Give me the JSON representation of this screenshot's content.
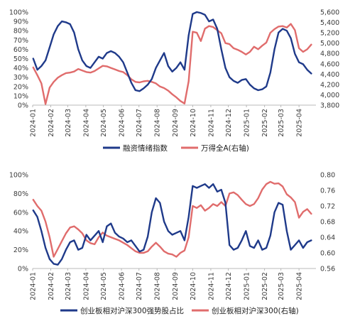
{
  "colors": {
    "navy": "#1f3a8a",
    "red": "#e06c6c",
    "axis": "#b8b8b8"
  },
  "chart_data": [
    {
      "type": "line",
      "title": "",
      "x_dates": [
        "2024-01-02",
        "2024-01-09",
        "2024-01-16",
        "2024-01-23",
        "2024-01-30",
        "2024-02-06",
        "2024-02-13",
        "2024-02-20",
        "2024-02-27",
        "2024-03-05",
        "2024-03-12",
        "2024-03-19",
        "2024-03-26",
        "2024-04-02",
        "2024-04-09",
        "2024-04-16",
        "2024-04-23",
        "2024-04-30",
        "2024-05-07",
        "2024-05-14",
        "2024-05-21",
        "2024-05-28",
        "2024-06-04",
        "2024-06-11",
        "2024-06-18",
        "2024-06-25",
        "2024-07-02",
        "2024-07-09",
        "2024-07-16",
        "2024-07-23",
        "2024-07-30",
        "2024-08-06",
        "2024-08-13",
        "2024-08-20",
        "2024-08-27",
        "2024-09-03",
        "2024-09-10",
        "2024-09-17",
        "2024-09-24",
        "2024-10-01",
        "2024-10-08",
        "2024-10-15",
        "2024-10-22",
        "2024-10-29",
        "2024-11-05",
        "2024-11-12",
        "2024-11-19",
        "2024-11-26",
        "2024-12-03",
        "2024-12-10",
        "2024-12-17",
        "2024-12-24",
        "2024-12-31",
        "2025-01-07",
        "2025-01-14",
        "2025-01-21",
        "2025-01-28",
        "2025-02-04",
        "2025-02-11",
        "2025-02-18",
        "2025-02-25",
        "2025-03-04",
        "2025-03-11",
        "2025-03-18",
        "2025-03-25",
        "2025-04-01",
        "2025-04-08",
        "2025-04-15",
        "2025-04-22"
      ],
      "x_tick_labels": [
        "2024-01",
        "2024-02",
        "2024-03",
        "2024-04",
        "2024-05",
        "2024-06",
        "2024-07",
        "2024-08",
        "2024-09",
        "2024-10",
        "2024-11",
        "2024-12",
        "2025-01",
        "2025-02",
        "2025-03",
        "2025-04"
      ],
      "y_left_ticks": [
        "0%",
        "10%",
        "20%",
        "30%",
        "40%",
        "50%",
        "60%",
        "70%",
        "80%",
        "90%",
        "100%"
      ],
      "y_left_lim": [
        0,
        100
      ],
      "y_right_ticks": [
        "3,800",
        "4,000",
        "4,200",
        "4,400",
        "4,600",
        "4,800",
        "5,000",
        "5,200",
        "5,400",
        "5,600"
      ],
      "y_right_lim": [
        3800,
        5600
      ],
      "legend": "bottom-center",
      "series": [
        {
          "name": "融资情绪指数",
          "axis": "left",
          "color": "#1f3a8a",
          "values": [
            50,
            38,
            42,
            48,
            62,
            76,
            85,
            90,
            89,
            87,
            78,
            60,
            48,
            42,
            40,
            46,
            52,
            50,
            56,
            58,
            56,
            52,
            46,
            35,
            24,
            16,
            15,
            18,
            22,
            28,
            40,
            48,
            56,
            42,
            36,
            40,
            46,
            38,
            75,
            98,
            100,
            99,
            97,
            90,
            92,
            82,
            60,
            40,
            30,
            26,
            24,
            27,
            28,
            22,
            18,
            16,
            17,
            20,
            35,
            60,
            78,
            82,
            80,
            72,
            55,
            46,
            44,
            38,
            34
          ]
        },
        {
          "name": "万得全A(右轴)",
          "axis": "right",
          "color": "#e06c6c",
          "values": [
            4530,
            4380,
            4220,
            3820,
            4140,
            4250,
            4330,
            4380,
            4420,
            4430,
            4450,
            4500,
            4470,
            4440,
            4430,
            4460,
            4510,
            4560,
            4550,
            4520,
            4490,
            4460,
            4440,
            4380,
            4300,
            4250,
            4240,
            4260,
            4270,
            4250,
            4220,
            4160,
            4130,
            4080,
            4010,
            3950,
            3880,
            3830,
            4260,
            5220,
            5200,
            5040,
            5280,
            5330,
            5310,
            5250,
            5190,
            5000,
            4980,
            4900,
            4870,
            4830,
            4780,
            4830,
            4930,
            4880,
            4950,
            5010,
            5200,
            5270,
            5320,
            5330,
            5300,
            5370,
            5250,
            4900,
            4830,
            4880,
            4970
          ]
        }
      ]
    },
    {
      "type": "line",
      "title": "",
      "x_dates": [
        "2024-01-02",
        "2024-01-09",
        "2024-01-16",
        "2024-01-23",
        "2024-01-30",
        "2024-02-06",
        "2024-02-13",
        "2024-02-20",
        "2024-02-27",
        "2024-03-05",
        "2024-03-12",
        "2024-03-19",
        "2024-03-26",
        "2024-04-02",
        "2024-04-09",
        "2024-04-16",
        "2024-04-23",
        "2024-04-30",
        "2024-05-07",
        "2024-05-14",
        "2024-05-21",
        "2024-05-28",
        "2024-06-04",
        "2024-06-11",
        "2024-06-18",
        "2024-06-25",
        "2024-07-02",
        "2024-07-09",
        "2024-07-16",
        "2024-07-23",
        "2024-07-30",
        "2024-08-06",
        "2024-08-13",
        "2024-08-20",
        "2024-08-27",
        "2024-09-03",
        "2024-09-10",
        "2024-09-17",
        "2024-09-24",
        "2024-10-01",
        "2024-10-08",
        "2024-10-15",
        "2024-10-22",
        "2024-10-29",
        "2024-11-05",
        "2024-11-12",
        "2024-11-19",
        "2024-11-26",
        "2024-12-03",
        "2024-12-10",
        "2024-12-17",
        "2024-12-24",
        "2024-12-31",
        "2025-01-07",
        "2025-01-14",
        "2025-01-21",
        "2025-01-28",
        "2025-02-04",
        "2025-02-11",
        "2025-02-18",
        "2025-02-25",
        "2025-03-04",
        "2025-03-11",
        "2025-03-18",
        "2025-03-25",
        "2025-04-01",
        "2025-04-08",
        "2025-04-15",
        "2025-04-22"
      ],
      "x_tick_labels": [
        "2024-01",
        "2024-02",
        "2024-03",
        "2024-04",
        "2024-05",
        "2024-06",
        "2024-07",
        "2024-08",
        "2024-09",
        "2024-10",
        "2024-11",
        "2024-12",
        "2025-01",
        "2025-02",
        "2025-03",
        "2025-04"
      ],
      "y_left_ticks": [
        "0%",
        "20%",
        "40%",
        "60%",
        "80%",
        "100%"
      ],
      "y_left_lim": [
        0,
        100
      ],
      "y_right_ticks": [
        "0.56",
        "0.60",
        "0.64",
        "0.68",
        "0.72",
        "0.76",
        "0.80"
      ],
      "y_right_lim": [
        0.56,
        0.8
      ],
      "legend": "bottom-center",
      "series": [
        {
          "name": "创业板相对沪深300强势股占比",
          "axis": "left",
          "color": "#1f3a8a",
          "values": [
            62,
            55,
            40,
            22,
            10,
            5,
            4,
            10,
            20,
            28,
            30,
            20,
            22,
            36,
            30,
            35,
            40,
            28,
            45,
            48,
            38,
            34,
            32,
            28,
            30,
            24,
            18,
            20,
            34,
            60,
            75,
            70,
            50,
            40,
            36,
            38,
            40,
            30,
            55,
            88,
            86,
            88,
            90,
            86,
            90,
            82,
            84,
            70,
            25,
            20,
            22,
            30,
            40,
            24,
            22,
            30,
            20,
            22,
            35,
            60,
            70,
            68,
            40,
            20,
            25,
            30,
            22,
            28,
            30
          ]
        },
        {
          "name": "创业板相对沪深300(右轴)",
          "axis": "right",
          "color": "#e06c6c",
          "values": [
            0.736,
            0.72,
            0.708,
            0.68,
            0.64,
            0.59,
            0.61,
            0.63,
            0.65,
            0.665,
            0.668,
            0.66,
            0.65,
            0.632,
            0.625,
            0.622,
            0.64,
            0.652,
            0.644,
            0.64,
            0.636,
            0.632,
            0.626,
            0.62,
            0.612,
            0.604,
            0.6,
            0.6,
            0.604,
            0.616,
            0.626,
            0.616,
            0.604,
            0.598,
            0.596,
            0.59,
            0.6,
            0.606,
            0.64,
            0.72,
            0.715,
            0.722,
            0.708,
            0.715,
            0.725,
            0.72,
            0.73,
            0.72,
            0.752,
            0.755,
            0.748,
            0.736,
            0.725,
            0.72,
            0.725,
            0.74,
            0.762,
            0.776,
            0.782,
            0.777,
            0.778,
            0.77,
            0.75,
            0.742,
            0.73,
            0.69,
            0.705,
            0.712,
            0.7
          ]
        }
      ]
    }
  ]
}
